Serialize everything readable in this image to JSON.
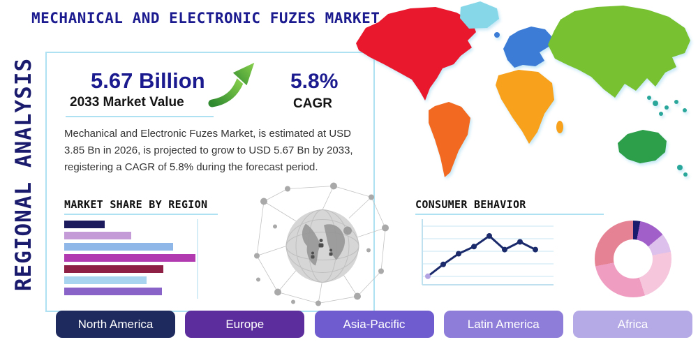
{
  "header": {
    "title": "MECHANICAL AND ELECTRONIC FUZES MARKET",
    "side_label": "REGIONAL ANALYSIS"
  },
  "highlights": {
    "market_value": "5.67 Billion",
    "market_value_caption": "2033 Market Value",
    "cagr_value": "5.8%",
    "cagr_caption": "CAGR",
    "description": "Mechanical and Electronic Fuzes Market, is estimated at USD 3.85 Bn in 2026, is projected to grow to USD 5.67 Bn by 2033, registering a CAGR of 5.8% during the forecast period."
  },
  "sections": {
    "market_share_title": "MARKET SHARE BY REGION",
    "consumer_behavior_title": "CONSUMER BEHAVIOR"
  },
  "chart_data": [
    {
      "id": "market_share",
      "type": "bar",
      "title": "MARKET SHARE BY REGION",
      "orientation": "horizontal",
      "values": [
        29,
        48,
        78,
        94,
        71,
        59,
        70
      ],
      "xlim": [
        0,
        100
      ],
      "colors": [
        "#1b1b5e",
        "#c49bd6",
        "#8fb8e8",
        "#b23ab0",
        "#8e1f45",
        "#a8d4f0",
        "#8a63c9"
      ]
    },
    {
      "id": "consumer_behavior",
      "type": "line",
      "title": "CONSUMER BEHAVIOR",
      "x": [
        1,
        2,
        3,
        4,
        5,
        6,
        7,
        8
      ],
      "values": [
        12,
        32,
        50,
        62,
        80,
        57,
        70,
        57
      ],
      "ylim": [
        0,
        100
      ],
      "grid": true,
      "legend_position": "none",
      "line_color": "#1b2a6b",
      "first_marker_color": "#b4a3e3"
    },
    {
      "id": "regional_share_donut",
      "type": "pie",
      "style": "donut",
      "slices": [
        {
          "label": "slice-1",
          "value": 3,
          "color": "#1b1b6e"
        },
        {
          "label": "slice-2",
          "value": 11,
          "color": "#a05fc9"
        },
        {
          "label": "slice-3",
          "value": 8,
          "color": "#ddc1ec"
        },
        {
          "label": "slice-4",
          "value": 23,
          "color": "#f6c6dc"
        },
        {
          "label": "slice-5",
          "value": 27,
          "color": "#ef9ec2"
        },
        {
          "label": "slice-6",
          "value": 28,
          "color": "#e58394"
        }
      ]
    }
  ],
  "regions": [
    {
      "label": "North America",
      "color": "#1e2a5e"
    },
    {
      "label": "Europe",
      "color": "#5c2d9c"
    },
    {
      "label": "Asia-Pacific",
      "color": "#6f5ccf"
    },
    {
      "label": "Latin America",
      "color": "#8f7ed9"
    },
    {
      "label": "Africa",
      "color": "#b5a9e6"
    }
  ],
  "map_colors": {
    "north_america": "#e9182c",
    "greenland": "#86d7e8",
    "south_america": "#f26a21",
    "europe": "#3c7cd6",
    "africa": "#f7a11c",
    "asia": "#78c131",
    "australia": "#2d9e4a",
    "islands": "#2aa79b"
  },
  "accents": {
    "title_color": "#1b1b8f",
    "box_border": "#aee2f2",
    "arrow_green": "#56aa36"
  }
}
